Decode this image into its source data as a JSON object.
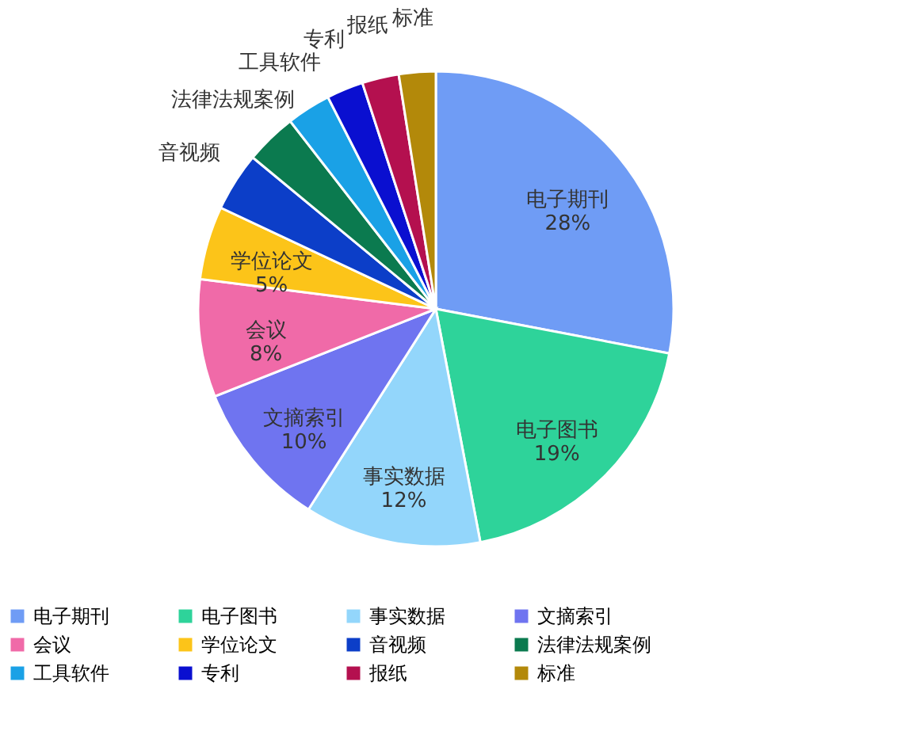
{
  "chart_data": {
    "type": "pie",
    "categories": [
      "电子期刊",
      "电子图书",
      "事实数据",
      "文摘索引",
      "会议",
      "学位论文",
      "音视频",
      "法律法规案例",
      "工具软件",
      "专利",
      "报纸",
      "标准"
    ],
    "values": [
      28,
      19,
      12,
      10,
      8,
      5,
      4,
      3.5,
      3,
      2.5,
      2.5,
      2.5
    ],
    "value_labels": [
      "28%",
      "19%",
      "12%",
      "10%",
      "8%",
      "5%",
      null,
      null,
      null,
      null,
      null,
      null
    ],
    "colors": [
      "#6f9cf5",
      "#2ed39a",
      "#93d6fb",
      "#6f74f0",
      "#f06aa8",
      "#fcc419",
      "#0c3ec8",
      "#0b7a4f",
      "#1aa1e6",
      "#0a0fd0",
      "#b4104f",
      "#b3890a"
    ],
    "legend": "bottom"
  }
}
